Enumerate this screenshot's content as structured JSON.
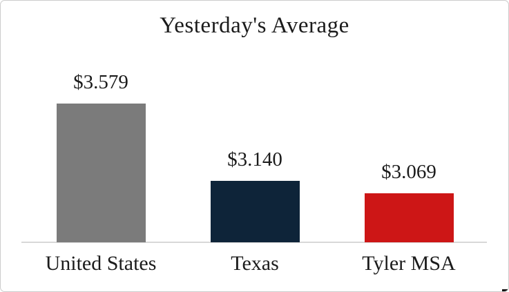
{
  "chart_data": {
    "type": "bar",
    "title": "Yesterday's Average",
    "categories": [
      "United States",
      "Texas",
      "Tyler MSA"
    ],
    "values": [
      3.579,
      3.14,
      3.069
    ],
    "value_labels": [
      "$3.579",
      "$3.140",
      "$3.069"
    ],
    "series": [
      {
        "name": "Yesterday's Average",
        "values": [
          3.579,
          3.14,
          3.069
        ]
      }
    ],
    "bar_colors": [
      "#7b7b7b",
      "#0e2439",
      "#cd1616"
    ],
    "xlabel": "",
    "ylabel": "",
    "ylim": [
      2.79,
      3.66
    ],
    "grid": false,
    "legend": "none",
    "value_axis_visible": false,
    "baseline_color": "#d8d8d8",
    "text_color": "#1b1b1b",
    "background_color": "#ffffff"
  }
}
